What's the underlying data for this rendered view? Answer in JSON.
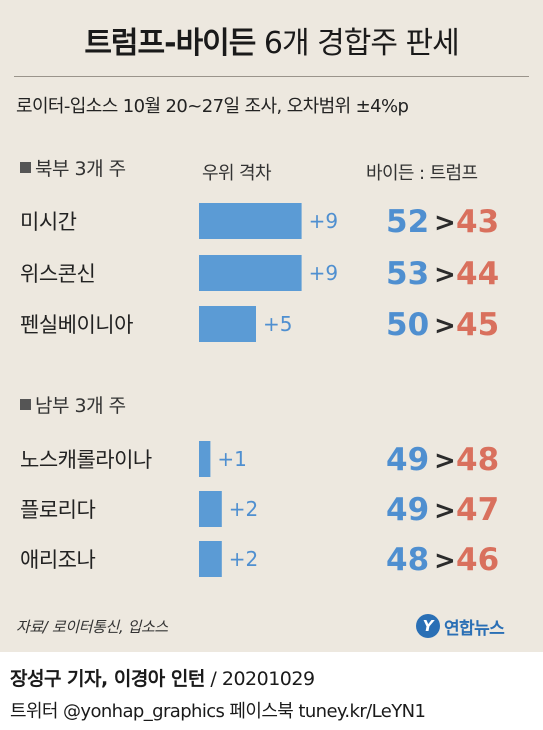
{
  "title": {
    "bold": "트럼프-바이든",
    "light": "6개 경합주 판세"
  },
  "subtitle": "로이터-입소스 10월 20~27일 조사, 오차범위 ±4%p",
  "headers": {
    "margin": "우위 격차",
    "pair": "바이든 : 트럼프"
  },
  "colors": {
    "background": "#ede8df",
    "bar": "#5b9bd5",
    "margin_label": "#4f8fd0",
    "biden": "#4f8fd0",
    "trump": "#d9705d",
    "comparator": "#2b2b2b"
  },
  "chart_data": {
    "type": "bar",
    "title": "",
    "xlabel": "우위 격차",
    "ylabel": "",
    "groups": [
      {
        "label": "북부 3개 주",
        "states": [
          {
            "state": "미시간",
            "margin": 9,
            "margin_label": "+9",
            "biden": 52,
            "trump": 43,
            "comparator": ">"
          },
          {
            "state": "위스콘신",
            "margin": 9,
            "margin_label": "+9",
            "biden": 53,
            "trump": 44,
            "comparator": ">"
          },
          {
            "state": "펜실베이니아",
            "margin": 5,
            "margin_label": "+5",
            "biden": 50,
            "trump": 45,
            "comparator": ">"
          }
        ]
      },
      {
        "label": "남부 3개 주",
        "states": [
          {
            "state": "노스캐롤라이나",
            "margin": 1,
            "margin_label": "+1",
            "biden": 49,
            "trump": 48,
            "comparator": ">"
          },
          {
            "state": "플로리다",
            "margin": 2,
            "margin_label": "+2",
            "biden": 49,
            "trump": 47,
            "comparator": ">"
          },
          {
            "state": "애리조나",
            "margin": 2,
            "margin_label": "+2",
            "biden": 48,
            "trump": 46,
            "comparator": ">"
          }
        ]
      }
    ]
  },
  "source": "자료/ 로이터통신, 입소스",
  "logo": {
    "mark": "Y",
    "name": "연합뉴스"
  },
  "credit": {
    "authors": "장성구 기자, 이경아 인턴",
    "separator": " / ",
    "date": "20201029"
  },
  "social": "트위터 @yonhap_graphics  페이스북 tuney.kr/LeYN1"
}
